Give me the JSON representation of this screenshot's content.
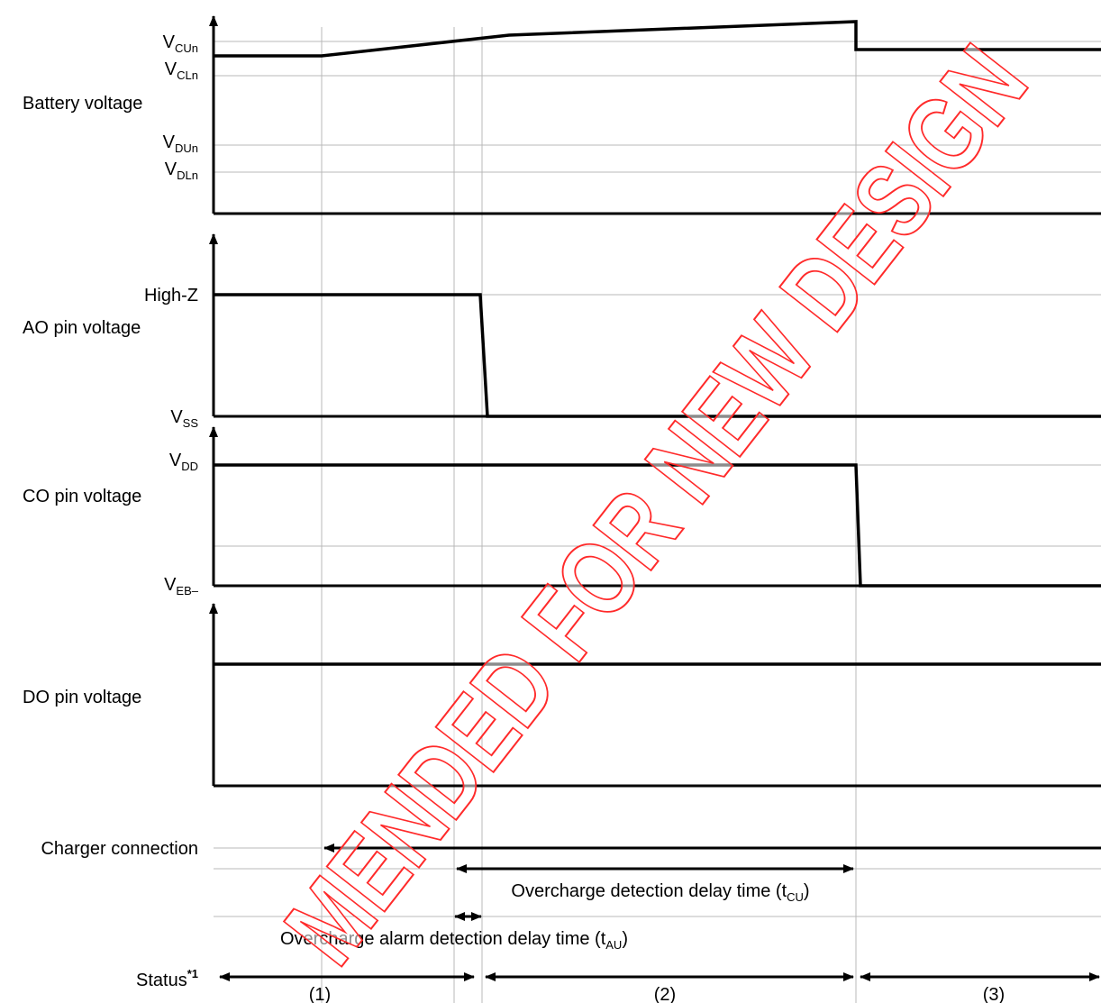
{
  "battery": {
    "label": "Battery voltage",
    "vcun": {
      "main": "V",
      "sub": "CUn"
    },
    "vcln": {
      "main": "V",
      "sub": "CLn"
    },
    "vdun": {
      "main": "V",
      "sub": "DUn"
    },
    "vdln": {
      "main": "V",
      "sub": "DLn"
    }
  },
  "ao": {
    "label": "AO pin voltage",
    "high": "High-Z",
    "low": {
      "main": "V",
      "sub": "SS"
    }
  },
  "co": {
    "label": "CO pin voltage",
    "high": {
      "main": "V",
      "sub": "DD"
    },
    "low": {
      "main": "V",
      "sub": "EB–"
    }
  },
  "do": {
    "label": "DO pin voltage"
  },
  "charger": {
    "label": "Charger connection"
  },
  "delays": {
    "overcharge": {
      "main": "Overcharge detection delay time (t",
      "sub": "CU",
      "end": ")"
    },
    "alarm": {
      "main": "Overcharge alarm detection delay time (t",
      "sub": "AU",
      "end": ")"
    }
  },
  "status": {
    "label": "Status",
    "sup": "*1",
    "states": [
      "(1)",
      "(2)",
      "(3)"
    ]
  },
  "watermark": "MENDED FOR NEW DESIGN"
}
